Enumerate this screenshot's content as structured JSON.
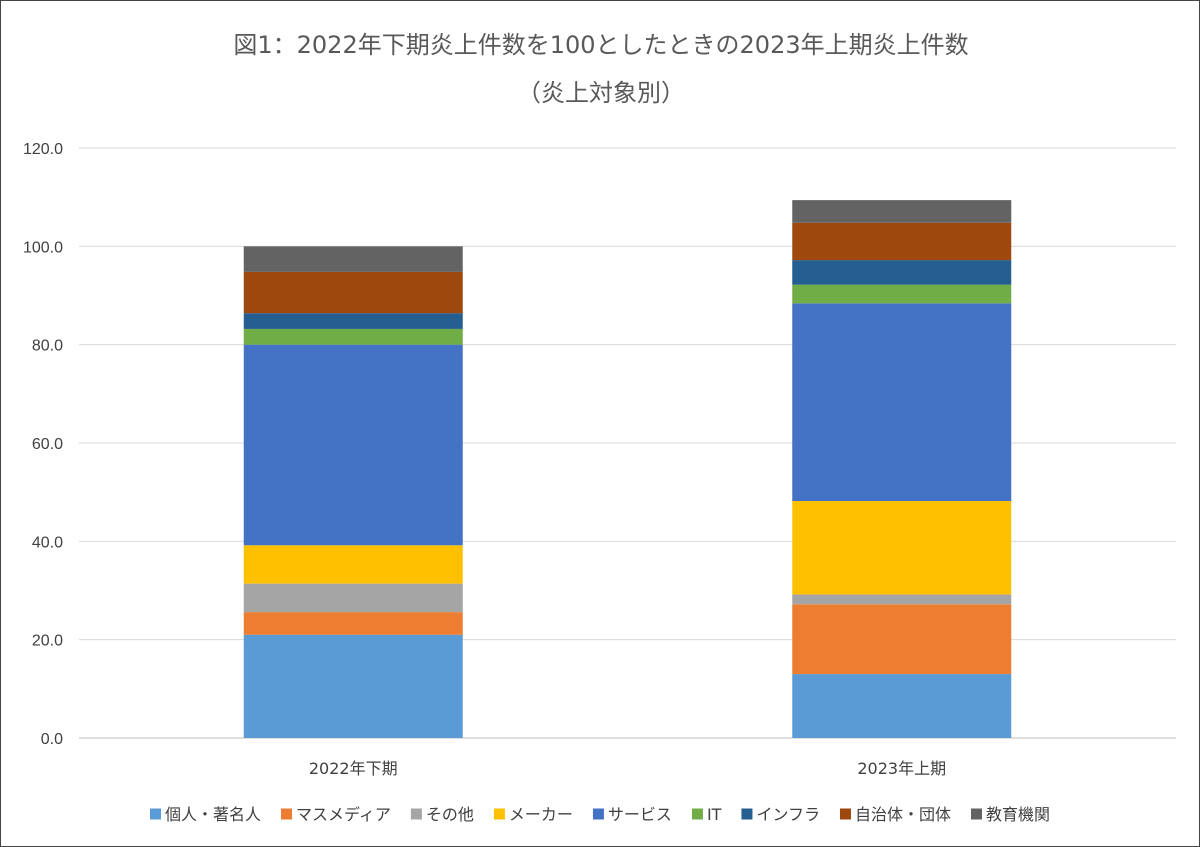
{
  "chart_data": {
    "type": "bar",
    "stacked": true,
    "title_line1": "図1：2022年下期炎上件数を100としたときの2023年上期炎上件数",
    "title_line2": "（炎上対象別）",
    "categories": [
      "2022年下期",
      "2023年上期"
    ],
    "ylim": [
      0,
      120
    ],
    "yticks": [
      "0.0",
      "20.0",
      "40.0",
      "60.0",
      "80.0",
      "100.0",
      "120.0"
    ],
    "grid": true,
    "legend_position": "bottom",
    "series": [
      {
        "name": "個人・著名人",
        "color": "#5B9BD5",
        "values": [
          21.0,
          13.0
        ]
      },
      {
        "name": "マスメディア",
        "color": "#ED7D31",
        "values": [
          4.6,
          14.2
        ]
      },
      {
        "name": "その他",
        "color": "#A5A5A5",
        "values": [
          5.8,
          2.0
        ]
      },
      {
        "name": "メーカー",
        "color": "#FFC000",
        "values": [
          7.8,
          19.0
        ]
      },
      {
        "name": "サービス",
        "color": "#4472C4",
        "values": [
          40.8,
          40.2
        ]
      },
      {
        "name": "IT",
        "color": "#70AD47",
        "values": [
          3.2,
          3.8
        ]
      },
      {
        "name": "インフラ",
        "color": "#255E91",
        "values": [
          3.2,
          5.0
        ]
      },
      {
        "name": "自治体・団体",
        "color": "#9E480E",
        "values": [
          8.4,
          7.6
        ]
      },
      {
        "name": "教育機関",
        "color": "#636363",
        "values": [
          5.2,
          4.6
        ]
      }
    ]
  }
}
